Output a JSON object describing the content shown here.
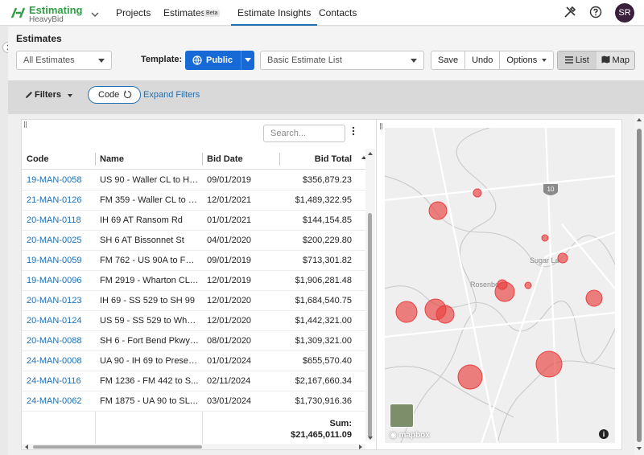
{
  "app": {
    "name": "Estimating",
    "product": "HeavyBid",
    "brand_color": "#2f9e44"
  },
  "nav": {
    "tabs": [
      {
        "label": "Projects"
      },
      {
        "label": "Estimates",
        "badge": "Beta"
      },
      {
        "label": "Estimate Insights",
        "active": true
      },
      {
        "label": "Contacts"
      }
    ],
    "user_initials": "SR"
  },
  "header": {
    "title": "Estimates",
    "estimate_filter": "All Estimates",
    "template_label": "Template:",
    "template_visibility": "Public",
    "template_name": "Basic Estimate List",
    "buttons": {
      "save": "Save",
      "undo": "Undo",
      "options": "Options"
    },
    "view": {
      "list": "List",
      "map": "Map",
      "selected": "list"
    }
  },
  "filters": {
    "label": "Filters",
    "chip": "Code",
    "expand": "Expand Filters"
  },
  "table": {
    "search_placeholder": "Search...",
    "columns": [
      "Code",
      "Name",
      "Bid Date",
      "Bid Total"
    ],
    "rows": [
      {
        "code": "19-MAN-0058",
        "name": "US 90 - Waller CL to Ha...",
        "date": "09/01/2019",
        "total": "$356,879.23"
      },
      {
        "code": "21-MAN-0126",
        "name": "FM 359 - Waller CL to F...",
        "date": "12/01/2021",
        "total": "$1,489,322.95"
      },
      {
        "code": "20-MAN-0118",
        "name": "IH 69 AT Ransom Rd",
        "date": "01/01/2021",
        "total": "$144,154.85"
      },
      {
        "code": "20-MAN-0025",
        "name": "SH 6 AT Bissonnet St",
        "date": "04/01/2020",
        "total": "$200,229.80"
      },
      {
        "code": "19-MAN-0059",
        "name": "FM 762 - US 90A to FM...",
        "date": "09/01/2019",
        "total": "$713,301.82"
      },
      {
        "code": "19-MAN-0096",
        "name": "FM 2919 - Wharton CL t...",
        "date": "12/01/2019",
        "total": "$1,906,281.48"
      },
      {
        "code": "20-MAN-0123",
        "name": "IH 69 - SS 529 to SH 99",
        "date": "12/01/2020",
        "total": "$1,684,540.75"
      },
      {
        "code": "20-MAN-0124",
        "name": "US 59 - SS 529 to Whar...",
        "date": "12/01/2020",
        "total": "$1,442,321.00"
      },
      {
        "code": "20-MAN-0088",
        "name": "SH 6 - Fort Bend Pkwy t...",
        "date": "08/01/2020",
        "total": "$1,309,321.00"
      },
      {
        "code": "24-MAN-0008",
        "name": "UA 90 - IH 69 to Presen...",
        "date": "01/01/2024",
        "total": "$655,570.40"
      },
      {
        "code": "24-MAN-0116",
        "name": "FM 1236 - FM 442 to S...",
        "date": "02/11/2024",
        "total": "$2,167,660.34"
      },
      {
        "code": "24-MAN-0062",
        "name": "FM 1875 - UA 90 to SL ...",
        "date": "03/01/2024",
        "total": "$1,730,916.36"
      }
    ],
    "sum_label": "Sum:",
    "sum_value": "$21,465,011.09"
  },
  "map": {
    "labels": {
      "highway": "10",
      "city_1": "Sugar La",
      "city_2": "Rosenbe",
      "attribution": "mapbox"
    },
    "marker_color": "#e8403f"
  }
}
